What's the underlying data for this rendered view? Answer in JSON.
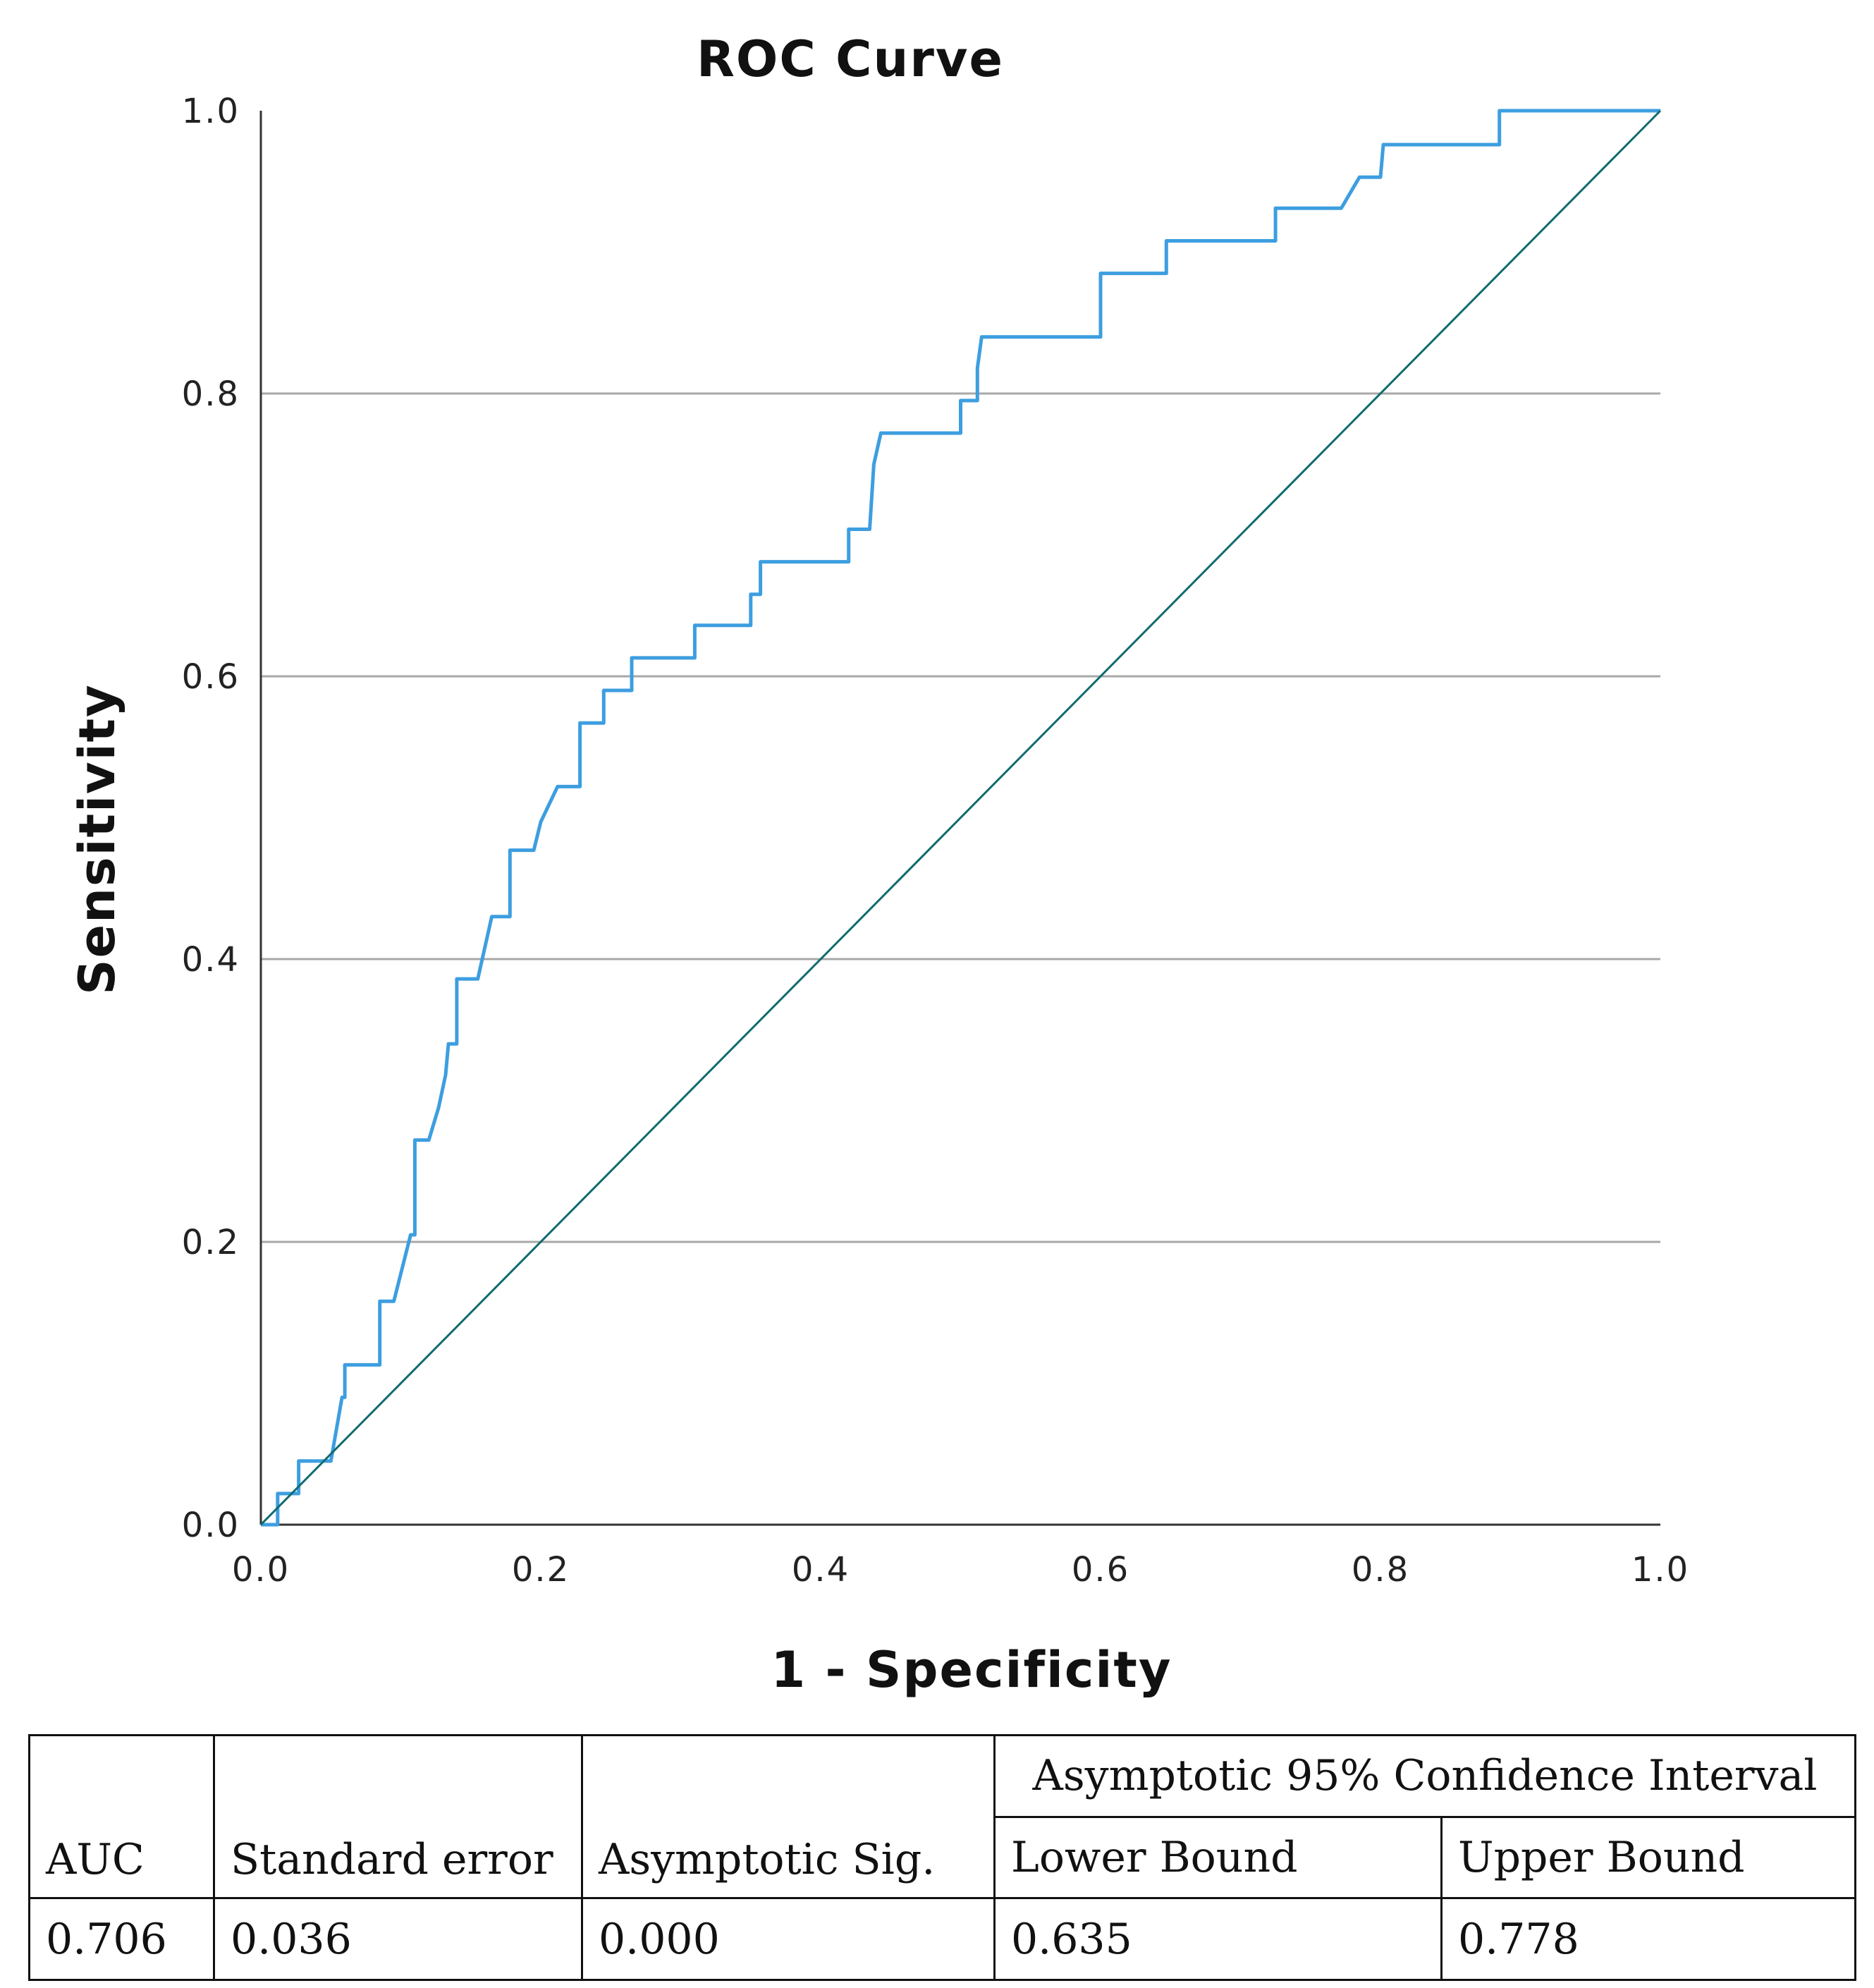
{
  "chart_data": {
    "type": "line",
    "title": "ROC Curve",
    "xlabel": "1 - Specificity",
    "ylabel": "Sensitivity",
    "xlim": [
      0.0,
      1.0
    ],
    "ylim": [
      0.0,
      1.0
    ],
    "x_ticks": [
      "0.0",
      "0.2",
      "0.4",
      "0.6",
      "0.8",
      "1.0"
    ],
    "y_ticks": [
      "0.0",
      "0.2",
      "0.4",
      "0.6",
      "0.8",
      "1.0"
    ],
    "gridlines_y": [
      0.2,
      0.4,
      0.6,
      0.8
    ],
    "series": [
      {
        "name": "ROC",
        "color": "#3d9ee0",
        "points": [
          [
            0.0,
            0.0
          ],
          [
            0.012,
            0.0
          ],
          [
            0.012,
            0.022
          ],
          [
            0.027,
            0.022
          ],
          [
            0.027,
            0.045
          ],
          [
            0.05,
            0.045
          ],
          [
            0.058,
            0.09
          ],
          [
            0.06,
            0.09
          ],
          [
            0.06,
            0.113
          ],
          [
            0.085,
            0.113
          ],
          [
            0.085,
            0.158
          ],
          [
            0.095,
            0.158
          ],
          [
            0.107,
            0.205
          ],
          [
            0.11,
            0.205
          ],
          [
            0.11,
            0.272
          ],
          [
            0.12,
            0.272
          ],
          [
            0.127,
            0.295
          ],
          [
            0.132,
            0.318
          ],
          [
            0.134,
            0.34
          ],
          [
            0.14,
            0.34
          ],
          [
            0.14,
            0.386
          ],
          [
            0.155,
            0.386
          ],
          [
            0.165,
            0.43
          ],
          [
            0.178,
            0.43
          ],
          [
            0.178,
            0.477
          ],
          [
            0.195,
            0.477
          ],
          [
            0.2,
            0.497
          ],
          [
            0.212,
            0.522
          ],
          [
            0.228,
            0.522
          ],
          [
            0.228,
            0.567
          ],
          [
            0.245,
            0.567
          ],
          [
            0.245,
            0.59
          ],
          [
            0.265,
            0.59
          ],
          [
            0.265,
            0.613
          ],
          [
            0.31,
            0.613
          ],
          [
            0.31,
            0.636
          ],
          [
            0.35,
            0.636
          ],
          [
            0.35,
            0.658
          ],
          [
            0.357,
            0.658
          ],
          [
            0.357,
            0.681
          ],
          [
            0.42,
            0.681
          ],
          [
            0.42,
            0.704
          ],
          [
            0.435,
            0.704
          ],
          [
            0.438,
            0.75
          ],
          [
            0.443,
            0.772
          ],
          [
            0.5,
            0.772
          ],
          [
            0.5,
            0.795
          ],
          [
            0.512,
            0.795
          ],
          [
            0.512,
            0.818
          ],
          [
            0.515,
            0.84
          ],
          [
            0.6,
            0.84
          ],
          [
            0.6,
            0.885
          ],
          [
            0.647,
            0.885
          ],
          [
            0.647,
            0.908
          ],
          [
            0.725,
            0.908
          ],
          [
            0.725,
            0.931
          ],
          [
            0.772,
            0.931
          ],
          [
            0.785,
            0.953
          ],
          [
            0.8,
            0.953
          ],
          [
            0.802,
            0.976
          ],
          [
            0.885,
            0.976
          ],
          [
            0.885,
            1.0
          ],
          [
            1.0,
            1.0
          ]
        ]
      },
      {
        "name": "Reference line",
        "color": "#116b6e",
        "points": [
          [
            0.0,
            0.0
          ],
          [
            1.0,
            1.0
          ]
        ]
      }
    ]
  },
  "table": {
    "ci_header": "Asymptotic 95% Confidence Interval",
    "columns": [
      "AUC",
      "Standard error",
      "Asymptotic Sig.",
      "Lower Bound",
      "Upper Bound"
    ],
    "row": [
      "0.706",
      "0.036",
      "0.000",
      "0.635",
      "0.778"
    ]
  }
}
